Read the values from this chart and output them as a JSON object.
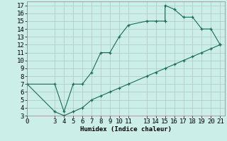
{
  "xlabel": "Humidex (Indice chaleur)",
  "bg_color": "#cceee8",
  "line_color": "#1a6b5a",
  "xlim": [
    0,
    21.5
  ],
  "ylim": [
    3,
    17.5
  ],
  "xticks": [
    0,
    3,
    4,
    5,
    6,
    7,
    8,
    9,
    10,
    11,
    13,
    14,
    15,
    16,
    17,
    18,
    19,
    20,
    21
  ],
  "yticks": [
    3,
    4,
    5,
    6,
    7,
    8,
    9,
    10,
    11,
    12,
    13,
    14,
    15,
    16,
    17
  ],
  "upper_x": [
    0,
    3,
    4,
    5,
    6,
    7,
    8,
    9,
    10,
    11,
    13,
    14,
    15,
    15,
    16,
    17,
    18,
    19,
    20,
    21
  ],
  "upper_y": [
    7,
    7,
    3.5,
    7,
    7,
    8.5,
    11,
    11,
    13,
    14.5,
    15,
    15,
    15,
    17,
    16.5,
    15.5,
    15.5,
    14,
    14,
    12
  ],
  "lower_x": [
    0,
    3,
    4,
    5,
    6,
    7,
    8,
    9,
    10,
    11,
    13,
    14,
    15,
    16,
    17,
    18,
    19,
    20,
    21
  ],
  "lower_y": [
    7,
    3.5,
    3,
    3.5,
    4,
    5,
    5.5,
    6,
    6.5,
    7,
    8,
    8.5,
    9,
    9.5,
    10,
    10.5,
    11,
    11.5,
    12
  ],
  "grid_color": "#b0c8c4",
  "font_size": 6.5
}
